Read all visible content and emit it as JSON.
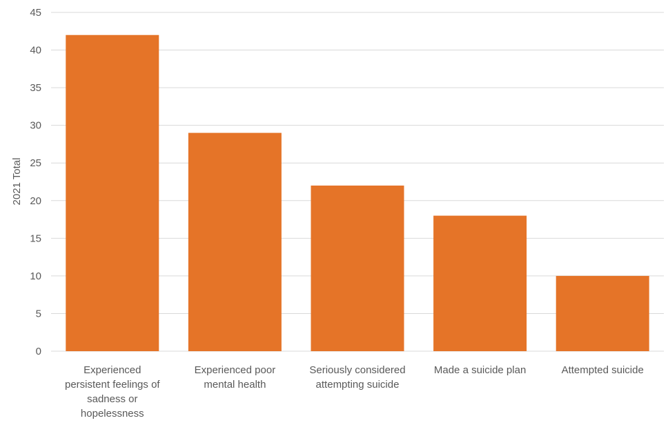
{
  "chart_data": {
    "type": "bar",
    "categories": [
      "Experienced persistent feelings of sadness or hopelessness",
      "Experienced poor mental health",
      "Seriously considered attempting suicide",
      "Made a suicide plan",
      "Attempted suicide"
    ],
    "category_lines": [
      [
        "Experienced",
        "persistent feelings of",
        "sadness or",
        "hopelessness"
      ],
      [
        "Experienced poor",
        "mental health"
      ],
      [
        "Seriously considered",
        "attempting suicide"
      ],
      [
        "Made a suicide plan"
      ],
      [
        "Attempted suicide"
      ]
    ],
    "values": [
      42,
      29,
      22,
      18,
      10
    ],
    "ylabel": "2021 Total",
    "ylim": [
      0,
      45
    ],
    "yticks": [
      0,
      5,
      10,
      15,
      20,
      25,
      30,
      35,
      40,
      45
    ],
    "grid": true,
    "colors": {
      "bar": "#E57428"
    }
  }
}
